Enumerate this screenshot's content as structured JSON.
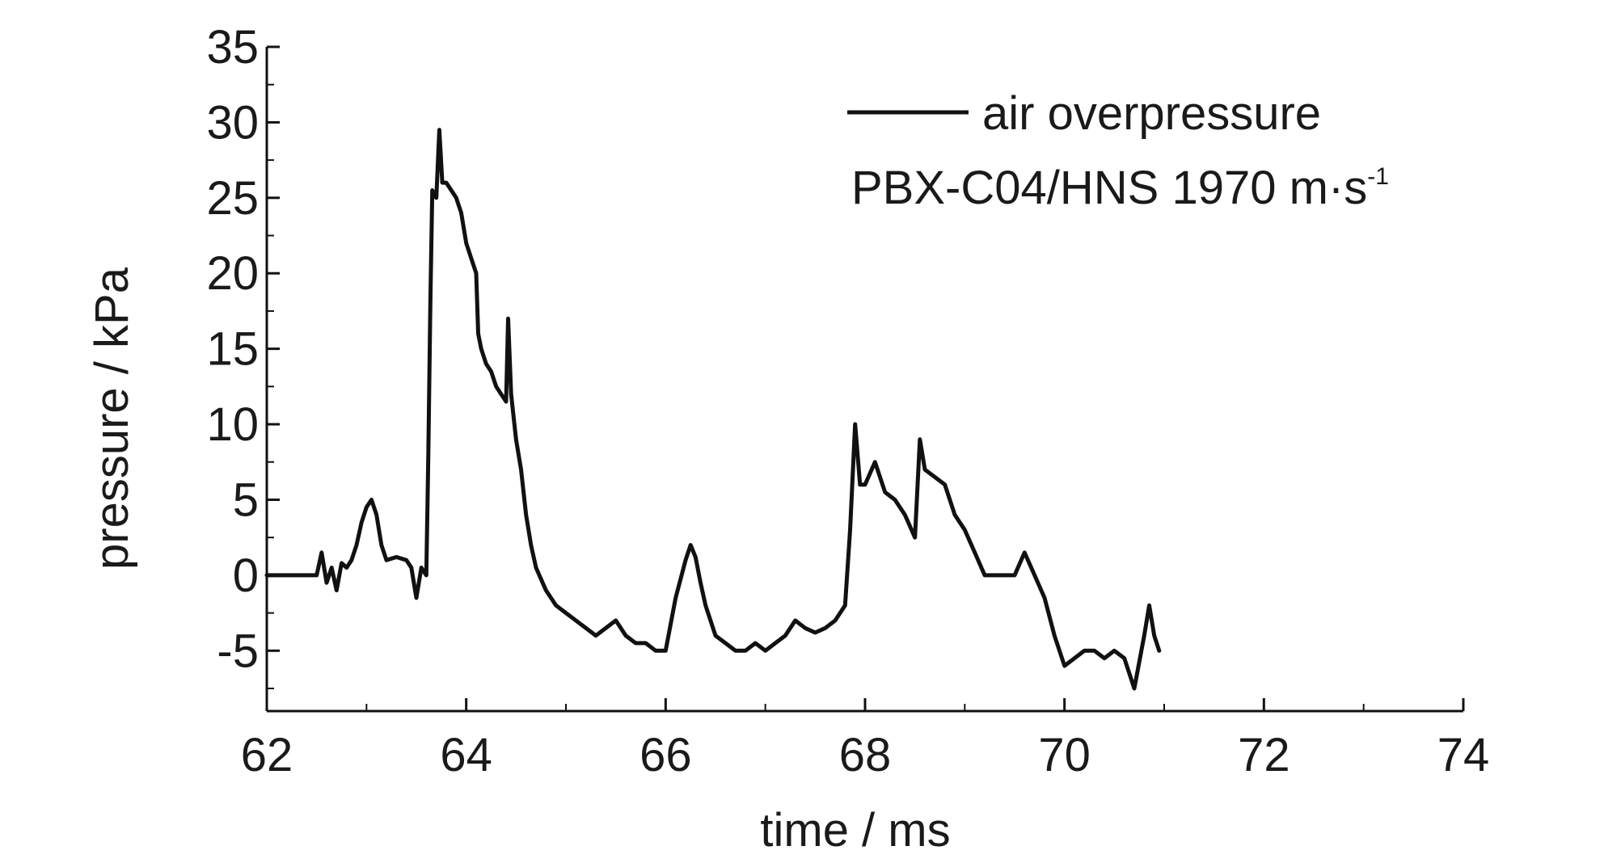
{
  "chart_data": {
    "type": "line",
    "title": "",
    "xlabel": "time / ms",
    "ylabel": "pressure / kPa",
    "xlim": [
      62,
      74
    ],
    "ylim": [
      -9,
      35
    ],
    "x_ticks": [
      "62",
      "64",
      "66",
      "68",
      "70",
      "72",
      "74"
    ],
    "y_ticks": [
      "35",
      "30",
      "25",
      "20",
      "15",
      "10",
      "5",
      "0",
      "-5"
    ],
    "x_tick_values": [
      62,
      64,
      66,
      68,
      70,
      72,
      74
    ],
    "y_tick_values": [
      35,
      30,
      25,
      20,
      15,
      10,
      5,
      0,
      -5
    ],
    "legend": {
      "position": "top-right",
      "entry": "air overpressure",
      "note": "PBX-C04/HNS  1970 m·s",
      "note_sup": "-1"
    },
    "grid": false,
    "series": [
      {
        "name": "air overpressure",
        "color": "#111111",
        "x": [
          62.0,
          62.3,
          62.5,
          62.55,
          62.6,
          62.65,
          62.7,
          62.75,
          62.8,
          62.85,
          62.9,
          62.95,
          63.0,
          63.05,
          63.1,
          63.15,
          63.2,
          63.3,
          63.4,
          63.45,
          63.5,
          63.55,
          63.6,
          63.62,
          63.64,
          63.66,
          63.7,
          63.73,
          63.76,
          63.8,
          63.9,
          63.95,
          64.0,
          64.05,
          64.1,
          64.12,
          64.15,
          64.2,
          64.25,
          64.3,
          64.35,
          64.4,
          64.42,
          64.45,
          64.5,
          64.55,
          64.6,
          64.65,
          64.7,
          64.8,
          64.9,
          65.0,
          65.1,
          65.2,
          65.3,
          65.4,
          65.5,
          65.6,
          65.7,
          65.8,
          65.9,
          66.0,
          66.1,
          66.2,
          66.25,
          66.3,
          66.35,
          66.4,
          66.5,
          66.6,
          66.7,
          66.8,
          66.9,
          67.0,
          67.1,
          67.2,
          67.3,
          67.4,
          67.5,
          67.6,
          67.7,
          67.8,
          67.85,
          67.9,
          67.95,
          68.0,
          68.1,
          68.2,
          68.3,
          68.4,
          68.5,
          68.55,
          68.6,
          68.7,
          68.8,
          68.9,
          69.0,
          69.1,
          69.2,
          69.3,
          69.4,
          69.5,
          69.6,
          69.7,
          69.8,
          69.9,
          70.0,
          70.1,
          70.2,
          70.3,
          70.4,
          70.5,
          70.6,
          70.7,
          70.8,
          70.85,
          70.9,
          70.95
        ],
        "y": [
          0,
          0,
          0,
          1.5,
          -0.5,
          0.5,
          -1,
          0.8,
          0.5,
          1,
          2,
          3.5,
          4.5,
          5,
          4,
          2,
          1,
          1.2,
          1,
          0.5,
          -1.5,
          0.5,
          0,
          8,
          18,
          25.5,
          25,
          29.5,
          26,
          26,
          25,
          24,
          22,
          21,
          20,
          16,
          15,
          14,
          13.5,
          12.5,
          12,
          11.5,
          17,
          12,
          9,
          7,
          4,
          2,
          0.5,
          -1,
          -2,
          -2.5,
          -3,
          -3.5,
          -4,
          -3.5,
          -3,
          -4,
          -4.5,
          -4.5,
          -5,
          -5,
          -1.5,
          1,
          2,
          1.2,
          -0.5,
          -2,
          -4,
          -4.5,
          -5,
          -5,
          -4.5,
          -5,
          -4.5,
          -4,
          -3,
          -3.5,
          -3.8,
          -3.5,
          -3,
          -2,
          3,
          10,
          6,
          6,
          7.5,
          5.5,
          5,
          4,
          2.5,
          9,
          7,
          6.5,
          6,
          4,
          3,
          1.5,
          0,
          0,
          0,
          0,
          1.5,
          0,
          -1.5,
          -4,
          -6,
          -5.5,
          -5,
          -5,
          -5.5,
          -5,
          -5.5,
          -7.5,
          -4,
          -2,
          -4,
          -5
        ]
      }
    ]
  }
}
